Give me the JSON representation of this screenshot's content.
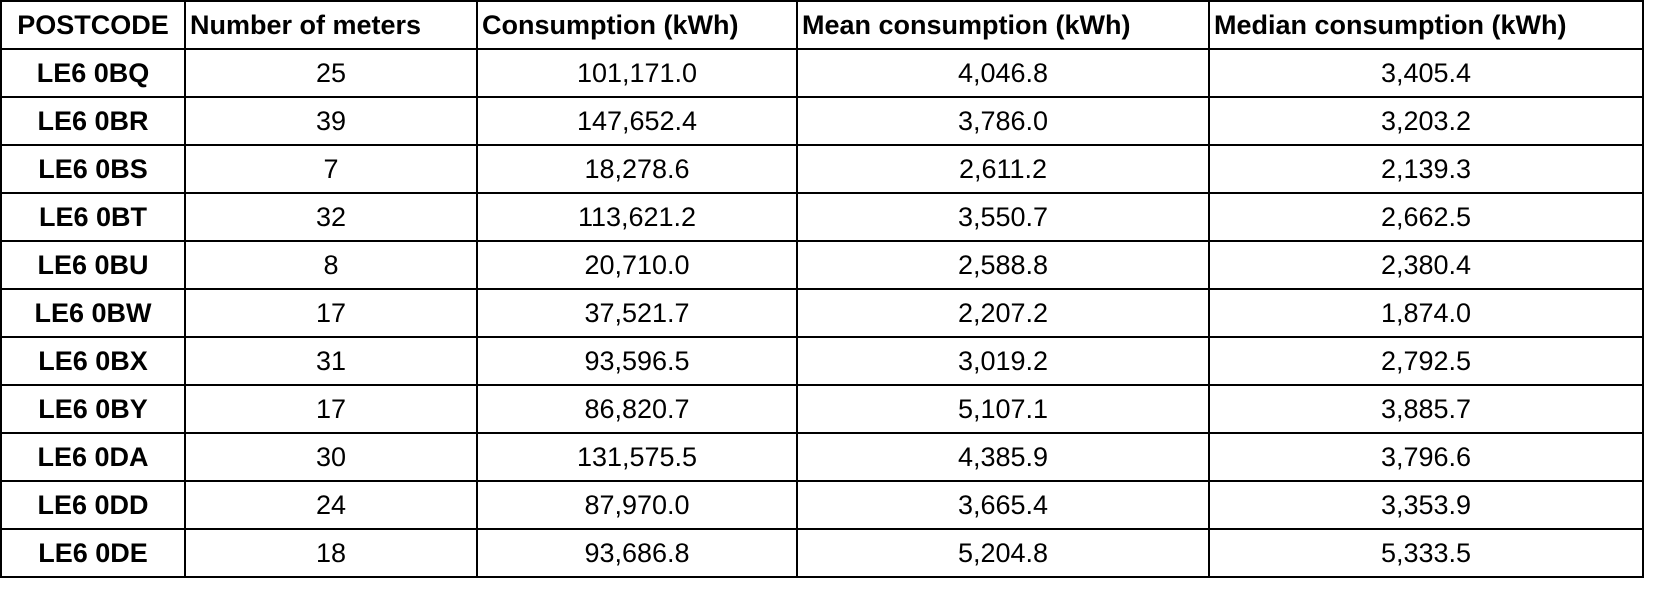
{
  "table": {
    "headers": [
      "POSTCODE",
      "Number of meters",
      "Consumption (kWh)",
      "Mean consumption (kWh)",
      "Median consumption (kWh)"
    ],
    "rows": [
      [
        "LE6 0BQ",
        "25",
        "101,171.0",
        "4,046.8",
        "3,405.4"
      ],
      [
        "LE6 0BR",
        "39",
        "147,652.4",
        "3,786.0",
        "3,203.2"
      ],
      [
        "LE6 0BS",
        "7",
        "18,278.6",
        "2,611.2",
        "2,139.3"
      ],
      [
        "LE6 0BT",
        "32",
        "113,621.2",
        "3,550.7",
        "2,662.5"
      ],
      [
        "LE6 0BU",
        "8",
        "20,710.0",
        "2,588.8",
        "2,380.4"
      ],
      [
        "LE6 0BW",
        "17",
        "37,521.7",
        "2,207.2",
        "1,874.0"
      ],
      [
        "LE6 0BX",
        "31",
        "93,596.5",
        "3,019.2",
        "2,792.5"
      ],
      [
        "LE6 0BY",
        "17",
        "86,820.7",
        "5,107.1",
        "3,885.7"
      ],
      [
        "LE6 0DA",
        "30",
        "131,575.5",
        "4,385.9",
        "3,796.6"
      ],
      [
        "LE6 0DD",
        "24",
        "87,970.0",
        "3,665.4",
        "3,353.9"
      ],
      [
        "LE6 0DE",
        "18",
        "93,686.8",
        "5,204.8",
        "5,333.5"
      ]
    ]
  }
}
